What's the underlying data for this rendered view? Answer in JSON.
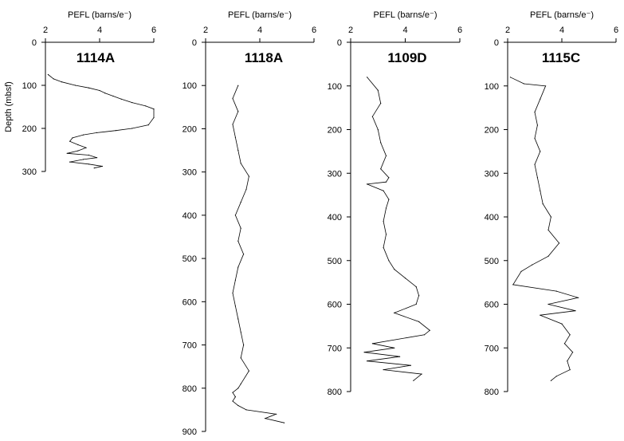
{
  "chart_data": [
    {
      "type": "line",
      "title": "1114A",
      "xlabel": "PEFL (barns/e⁻)",
      "ylabel": "Depth (mbsf)",
      "xlim": [
        2,
        6
      ],
      "ylim": [
        0,
        300
      ],
      "x_ticks": [
        "2",
        "4",
        "6"
      ],
      "y_ticks": [
        "0",
        "100",
        "200",
        "300"
      ],
      "series": [
        {
          "x": [
            2.1,
            2.3,
            2.6,
            3.1,
            3.6,
            4.0,
            4.2,
            4.5,
            4.8,
            5.2,
            5.7,
            6.0,
            6.0,
            5.8,
            5.2,
            4.6,
            3.9,
            3.4,
            3.0,
            2.9,
            3.2,
            3.5,
            3.2,
            2.8,
            3.6,
            3.9,
            3.4,
            2.9,
            3.6,
            4.1,
            3.8
          ],
          "y": [
            75,
            85,
            92,
            100,
            106,
            112,
            118,
            125,
            132,
            140,
            148,
            155,
            175,
            192,
            200,
            205,
            210,
            215,
            222,
            230,
            238,
            245,
            252,
            258,
            262,
            268,
            272,
            278,
            283,
            288,
            292
          ]
        }
      ]
    },
    {
      "type": "line",
      "title": "1118A",
      "xlabel": "PEFL (barns/e⁻)",
      "ylabel": "",
      "xlim": [
        2,
        6
      ],
      "ylim": [
        0,
        900
      ],
      "x_ticks": [
        "2",
        "4",
        "6"
      ],
      "y_ticks": [
        "0",
        "100",
        "200",
        "300",
        "400",
        "500",
        "600",
        "700",
        "800",
        "900"
      ],
      "series": [
        {
          "x": [
            3.2,
            3.0,
            3.2,
            3.0,
            3.1,
            3.2,
            3.3,
            3.6,
            3.5,
            3.3,
            3.1,
            3.3,
            3.2,
            3.4,
            3.2,
            3.1,
            3.0,
            3.1,
            3.2,
            3.3,
            3.4,
            3.3,
            3.6,
            3.3,
            3.2,
            3.0,
            3.1,
            3.0,
            3.2,
            3.5,
            4.6,
            4.2,
            4.9
          ],
          "y": [
            100,
            130,
            160,
            190,
            220,
            250,
            280,
            310,
            340,
            370,
            400,
            430,
            460,
            490,
            520,
            550,
            580,
            610,
            640,
            670,
            700,
            730,
            760,
            790,
            800,
            810,
            820,
            830,
            840,
            850,
            860,
            870,
            880
          ]
        }
      ]
    },
    {
      "type": "line",
      "title": "1109D",
      "xlabel": "PEFL (barns/e⁻)",
      "ylabel": "",
      "xlim": [
        2,
        6
      ],
      "ylim": [
        0,
        800
      ],
      "x_ticks": [
        "2",
        "4",
        "6"
      ],
      "y_ticks": [
        "0",
        "100",
        "200",
        "300",
        "400",
        "500",
        "600",
        "700",
        "800"
      ],
      "series": [
        {
          "x": [
            2.6,
            3.0,
            3.1,
            2.8,
            3.0,
            3.1,
            3.3,
            3.1,
            3.4,
            3.3,
            2.6,
            3.2,
            3.4,
            3.3,
            3.2,
            3.3,
            3.2,
            3.4,
            3.6,
            4.0,
            4.4,
            4.5,
            4.4,
            3.6,
            4.5,
            4.9,
            4.7,
            2.8,
            3.6,
            2.5,
            3.8,
            2.6,
            4.2,
            3.2,
            4.6,
            4.3
          ],
          "y": [
            80,
            110,
            140,
            170,
            200,
            230,
            260,
            290,
            310,
            320,
            325,
            340,
            360,
            380,
            410,
            440,
            470,
            500,
            520,
            540,
            560,
            580,
            600,
            620,
            640,
            660,
            670,
            690,
            700,
            710,
            720,
            730,
            740,
            750,
            760,
            775
          ]
        }
      ]
    },
    {
      "type": "line",
      "title": "1115C",
      "xlabel": "PEFL (barns/e⁻)",
      "ylabel": "",
      "xlim": [
        2,
        6
      ],
      "ylim": [
        0,
        800
      ],
      "x_ticks": [
        "2",
        "4",
        "6"
      ],
      "y_ticks": [
        "0",
        "100",
        "200",
        "300",
        "400",
        "500",
        "600",
        "700",
        "800"
      ],
      "series": [
        {
          "x": [
            2.1,
            2.6,
            3.4,
            3.2,
            3.0,
            3.1,
            3.0,
            3.2,
            3.0,
            3.1,
            3.2,
            3.3,
            3.6,
            3.5,
            3.9,
            3.5,
            2.9,
            2.5,
            2.2,
            3.8,
            4.6,
            3.5,
            4.5,
            3.2,
            4.0,
            4.3,
            4.1,
            4.4,
            4.2,
            4.3,
            3.8,
            3.6
          ],
          "y": [
            80,
            95,
            100,
            130,
            160,
            190,
            220,
            250,
            280,
            310,
            340,
            370,
            400,
            430,
            460,
            490,
            510,
            525,
            555,
            570,
            585,
            600,
            615,
            625,
            645,
            670,
            690,
            710,
            730,
            750,
            765,
            775
          ]
        }
      ]
    }
  ]
}
